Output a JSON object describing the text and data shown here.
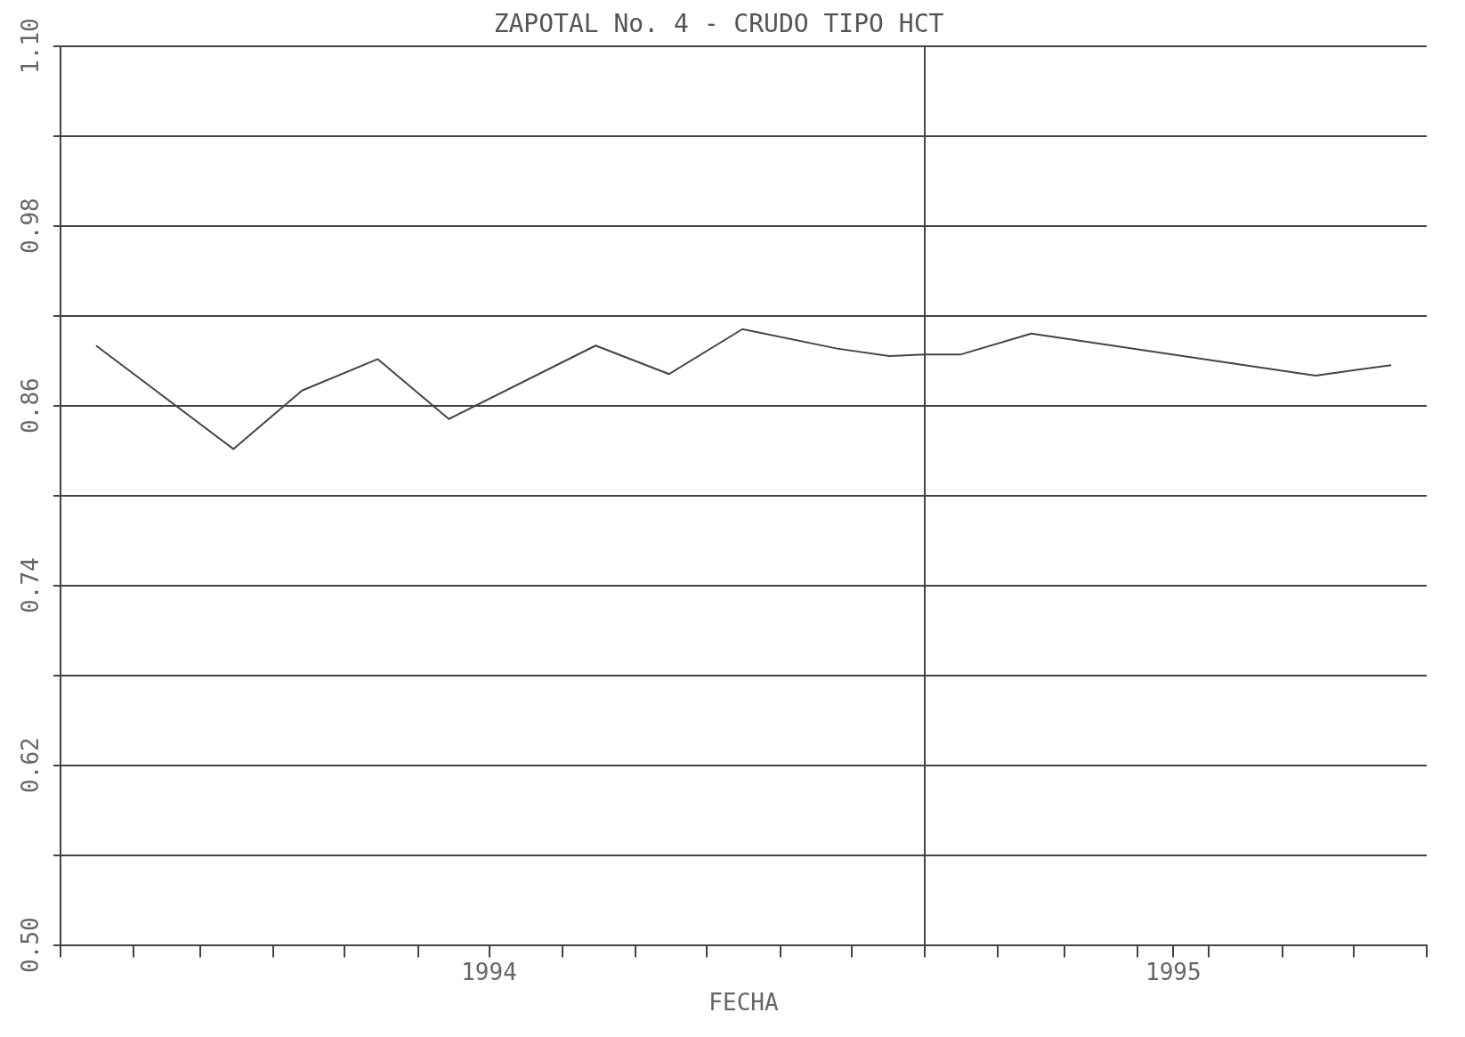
{
  "chart_data": {
    "type": "line",
    "title": "ZAPOTAL No. 4 - CRUDO TIPO HCT",
    "xlabel": "FECHA",
    "x": [
      "1994-01-16",
      "1994-03-15",
      "1994-04-13",
      "1994-05-15",
      "1994-06-14",
      "1994-08-15",
      "1994-09-15",
      "1994-10-16",
      "1994-11-25",
      "1994-12-17",
      "1995-01-01",
      "1995-01-16",
      "1995-02-15",
      "1995-06-15",
      "1995-07-17"
    ],
    "series": [
      {
        "color": "#444444",
        "values": [
          0.9,
          0.831,
          0.87,
          0.891,
          0.851,
          0.9,
          0.881,
          0.911,
          0.898,
          0.893,
          0.894,
          0.894,
          0.908,
          0.88,
          0.887
        ]
      }
    ],
    "xlim": [
      "1994-01-01",
      "1995-08-01"
    ],
    "xticks": [
      {
        "value": "1994-01-01",
        "label": null
      },
      {
        "value": "1994-02-01",
        "label": null
      },
      {
        "value": "1994-03-01",
        "label": null
      },
      {
        "value": "1994-04-01",
        "label": null
      },
      {
        "value": "1994-05-01",
        "label": null
      },
      {
        "value": "1994-06-01",
        "label": null
      },
      {
        "value": "1994-07-01",
        "label": "1994"
      },
      {
        "value": "1994-08-01",
        "label": null
      },
      {
        "value": "1994-09-01",
        "label": null
      },
      {
        "value": "1994-10-01",
        "label": null
      },
      {
        "value": "1994-11-01",
        "label": null
      },
      {
        "value": "1994-12-01",
        "label": null
      },
      {
        "value": "1995-01-01",
        "label": null
      },
      {
        "value": "1995-02-01",
        "label": null
      },
      {
        "value": "1995-03-01",
        "label": null
      },
      {
        "value": "1995-04-01",
        "label": null
      },
      {
        "value": "1995-04-16",
        "label": "1995"
      },
      {
        "value": "1995-05-01",
        "label": null
      },
      {
        "value": "1995-06-01",
        "label": null
      },
      {
        "value": "1995-07-01",
        "label": null
      },
      {
        "value": "1995-08-01",
        "label": null
      }
    ],
    "ylim": [
      0.5,
      1.1
    ],
    "yticks": [
      {
        "value": 0.5,
        "label": "0.50"
      },
      {
        "value": 0.56,
        "label": null
      },
      {
        "value": 0.62,
        "label": "0.62"
      },
      {
        "value": 0.68,
        "label": null
      },
      {
        "value": 0.74,
        "label": "0.74"
      },
      {
        "value": 0.8,
        "label": null
      },
      {
        "value": 0.86,
        "label": "0.86"
      },
      {
        "value": 0.92,
        "label": null
      },
      {
        "value": 0.98,
        "label": "0.98"
      },
      {
        "value": 1.04,
        "label": null
      },
      {
        "value": 1.1,
        "label": "1.10"
      }
    ],
    "grid": "y",
    "legend": false,
    "marker": "none",
    "line_style": "solid",
    "ref_lines": [
      {
        "axis": "x",
        "value": "1995-01-01",
        "color": "#444444"
      }
    ]
  }
}
